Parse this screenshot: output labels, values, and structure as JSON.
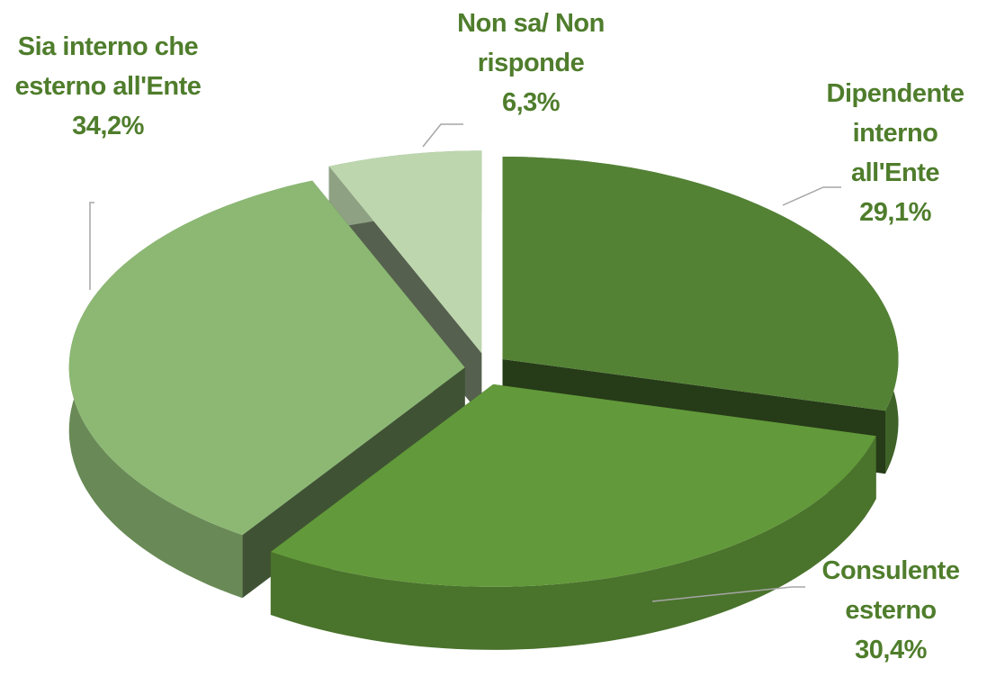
{
  "chart_data": {
    "type": "pie3d",
    "categories": [
      "Dipendente interno all'Ente",
      "Consulente esterno",
      "Sia interno che esterno all'Ente",
      "Non sa/ Non risponde"
    ],
    "values": [
      29.1,
      30.4,
      34.2,
      6.3
    ],
    "value_labels": [
      "29,1%",
      "30,4%",
      "34,2%",
      "6,3%"
    ],
    "colors": [
      "#548235",
      "#62993a",
      "#8cb873",
      "#bdd6ae"
    ],
    "label_color": "#4f7d2c"
  }
}
